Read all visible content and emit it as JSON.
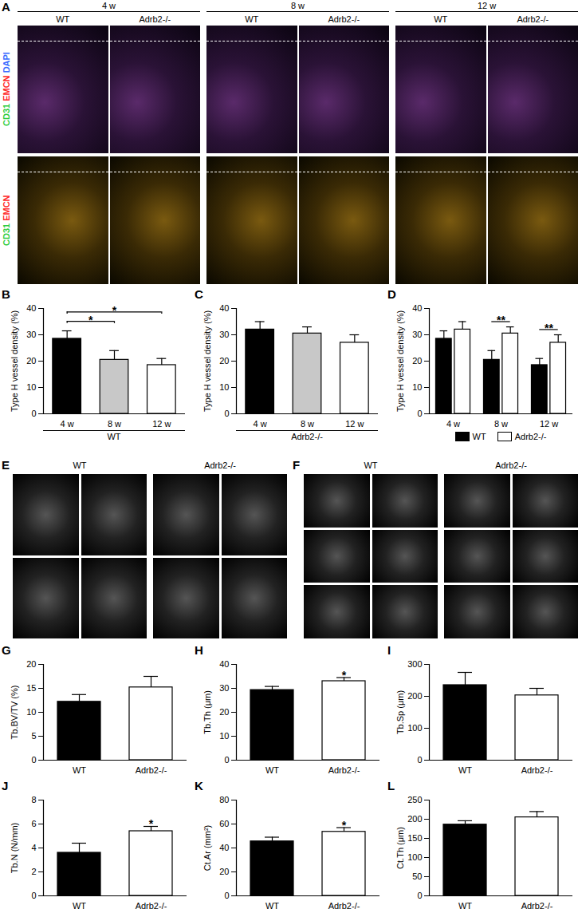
{
  "chart_data": [
    {
      "title": "B",
      "type": "bar",
      "y_label": "Type H vessel density (%)",
      "x_label": "WT",
      "categories": [
        "4 w",
        "8 w",
        "12 w"
      ],
      "values": [
        28.5,
        20.5,
        18.5
      ],
      "errors": [
        3,
        3.5,
        2.5
      ],
      "colors": [
        "#000000",
        "#c8c8c8",
        "#ffffff"
      ],
      "ylim": [
        0,
        40
      ],
      "yticks": [
        0,
        10,
        20,
        30,
        40
      ],
      "significance": [
        {
          "from": "4 w",
          "to": "8 w",
          "label": "*"
        },
        {
          "from": "4 w",
          "to": "12 w",
          "label": "*"
        }
      ]
    },
    {
      "title": "C",
      "type": "bar",
      "y_label": "Type H vessel density (%)",
      "x_label": "Adrb2-/-",
      "categories": [
        "4 w",
        "8 w",
        "12 w"
      ],
      "values": [
        32,
        30.5,
        27
      ],
      "errors": [
        3,
        2.5,
        3
      ],
      "colors": [
        "#000000",
        "#c8c8c8",
        "#ffffff"
      ],
      "ylim": [
        0,
        40
      ],
      "yticks": [
        0,
        10,
        20,
        30,
        40
      ]
    },
    {
      "title": "D",
      "type": "bar",
      "y_label": "Type H vessel density (%)",
      "categories": [
        "4 w",
        "8 w",
        "12 w"
      ],
      "series": [
        {
          "name": "WT",
          "color": "#000000",
          "values": [
            28.5,
            20.5,
            18.5
          ],
          "errors": [
            3,
            3.5,
            2.5
          ]
        },
        {
          "name": "Adrb2-/-",
          "color": "#ffffff",
          "values": [
            32,
            30.5,
            27
          ],
          "errors": [
            3,
            2.5,
            3
          ]
        }
      ],
      "legend": "bottom",
      "ylim": [
        0,
        40
      ],
      "yticks": [
        0,
        10,
        20,
        30,
        40
      ],
      "significance": [
        {
          "category": "8 w",
          "label": "**"
        },
        {
          "category": "12 w",
          "label": "**"
        }
      ]
    },
    {
      "title": "G",
      "type": "bar",
      "y_label": "Tb.BV/TV (%)",
      "categories": [
        "WT",
        "Adrb2-/-"
      ],
      "values": [
        12.2,
        15.2
      ],
      "errors": [
        1.5,
        2.3
      ],
      "colors": [
        "#000000",
        "#ffffff"
      ],
      "ylim": [
        0,
        20
      ],
      "yticks": [
        0,
        5,
        10,
        15,
        20
      ]
    },
    {
      "title": "H",
      "type": "bar",
      "y_label": "Tb.Th (μm)",
      "categories": [
        "WT",
        "Adrb2-/-"
      ],
      "values": [
        29.3,
        33
      ],
      "errors": [
        1.5,
        1.5
      ],
      "colors": [
        "#000000",
        "#ffffff"
      ],
      "ylim": [
        0,
        40
      ],
      "yticks": [
        0,
        10,
        20,
        30,
        40
      ],
      "significance": [
        {
          "category": "Adrb2-/-",
          "label": "*"
        }
      ]
    },
    {
      "title": "I",
      "type": "bar",
      "y_label": "Tb.Sp (μm)",
      "categories": [
        "WT",
        "Adrb2-/-"
      ],
      "values": [
        235,
        203
      ],
      "errors": [
        40,
        22
      ],
      "colors": [
        "#000000",
        "#ffffff"
      ],
      "ylim": [
        0,
        300
      ],
      "yticks": [
        0,
        100,
        200,
        300
      ]
    },
    {
      "title": "J",
      "type": "bar",
      "y_label": "Tb.N (N/mm)",
      "categories": [
        "WT",
        "Adrb2-/-"
      ],
      "values": [
        3.6,
        5.4
      ],
      "errors": [
        0.8,
        0.4
      ],
      "colors": [
        "#000000",
        "#ffffff"
      ],
      "ylim": [
        0,
        8
      ],
      "yticks": [
        0,
        2,
        4,
        6,
        8
      ],
      "significance": [
        {
          "category": "Adrb2-/-",
          "label": "*"
        }
      ]
    },
    {
      "title": "K",
      "type": "bar",
      "y_label": "Ct.Ar (mm²)",
      "categories": [
        "WT",
        "Adrb2-/-"
      ],
      "values": [
        45.5,
        53.5
      ],
      "errors": [
        3.5,
        3.5
      ],
      "colors": [
        "#000000",
        "#ffffff"
      ],
      "ylim": [
        0,
        80
      ],
      "yticks": [
        0,
        20,
        40,
        60,
        80
      ],
      "significance": [
        {
          "category": "Adrb2-/-",
          "label": "*"
        }
      ]
    },
    {
      "title": "L",
      "type": "bar",
      "y_label": "Ct.Th (μm)",
      "categories": [
        "WT",
        "Adrb2-/-"
      ],
      "values": [
        186,
        205
      ],
      "errors": [
        10,
        15
      ],
      "colors": [
        "#000000",
        "#ffffff"
      ],
      "ylim": [
        0,
        250
      ],
      "yticks": [
        0,
        50,
        100,
        150,
        200,
        250
      ]
    }
  ],
  "images": [
    {
      "title": "A",
      "groups": [
        {
          "label": "4 w",
          "columns": [
            "WT",
            "Adrb2-/-"
          ]
        },
        {
          "label": "8 w",
          "columns": [
            "WT",
            "Adrb2-/-"
          ]
        },
        {
          "label": "12 w",
          "columns": [
            "WT",
            "Adrb2-/-"
          ]
        }
      ],
      "rows": [
        [
          {
            "text": "CD31",
            "color": "#2ecc40"
          },
          {
            "text": "EMCN",
            "color": "#ff2a2a"
          },
          {
            "text": "DAPI",
            "color": "#3b6cff"
          }
        ],
        [
          {
            "text": "CD31",
            "color": "#2ecc40"
          },
          {
            "text": "EMCN",
            "color": "#ff2a2a"
          }
        ]
      ]
    },
    {
      "title": "E",
      "groups": [
        {
          "label": "WT"
        },
        {
          "label": "Adrb2-/-"
        }
      ]
    },
    {
      "title": "F",
      "groups": [
        {
          "label": "WT"
        },
        {
          "label": "Adrb2-/-"
        }
      ]
    }
  ]
}
